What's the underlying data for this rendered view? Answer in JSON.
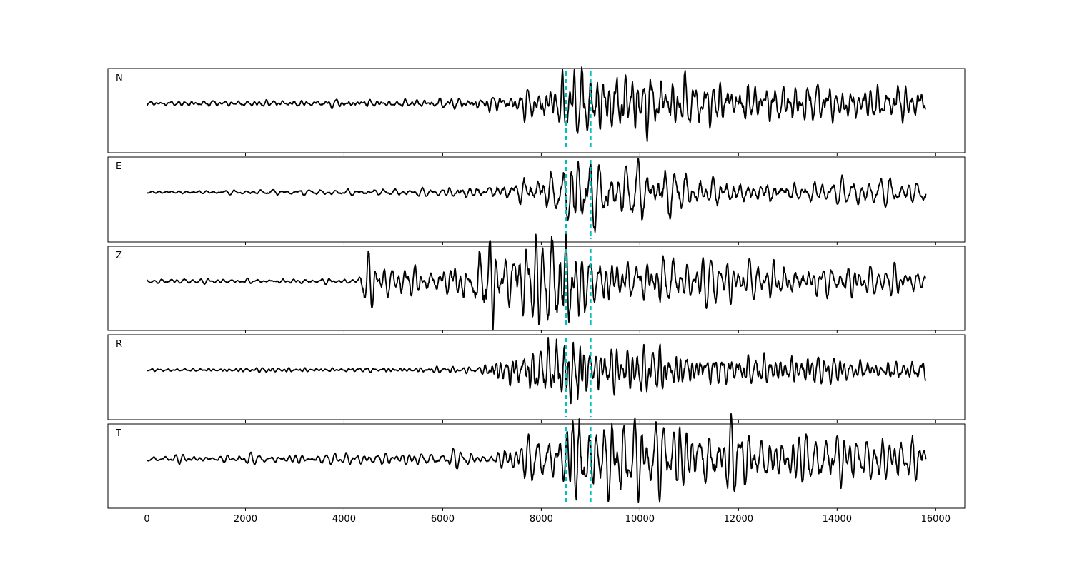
{
  "chart_data": {
    "type": "line",
    "layout": "5 stacked subplots, shared x-axis",
    "xlim": [
      -790,
      16590
    ],
    "x_ticks": [
      0,
      2000,
      4000,
      6000,
      8000,
      10000,
      12000,
      14000,
      16000
    ],
    "x_tick_labels": [
      "0",
      "2000",
      "4000",
      "6000",
      "8000",
      "10000",
      "12000",
      "14000",
      "16000"
    ],
    "y_ticks": "none",
    "grid": false,
    "x_range_of_data": [
      0,
      15800
    ],
    "line_color": "#000000",
    "markers": {
      "color": "#00bfbf",
      "style": "dashed",
      "x": [
        8500,
        9000
      ]
    },
    "panels": [
      {
        "label": "N",
        "envelope": [
          [
            0,
            0.05
          ],
          [
            4500,
            0.07
          ],
          [
            6500,
            0.1
          ],
          [
            7500,
            0.22
          ],
          [
            8400,
            0.5
          ],
          [
            8600,
            1.0
          ],
          [
            9000,
            0.6
          ],
          [
            9600,
            0.7
          ],
          [
            10500,
            0.55
          ],
          [
            12000,
            0.4
          ],
          [
            15800,
            0.35
          ]
        ]
      },
      {
        "label": "E",
        "envelope": [
          [
            0,
            0.04
          ],
          [
            5000,
            0.07
          ],
          [
            7000,
            0.2
          ],
          [
            8400,
            0.5
          ],
          [
            8600,
            1.0
          ],
          [
            9200,
            0.6
          ],
          [
            10500,
            0.5
          ],
          [
            12000,
            0.3
          ],
          [
            15800,
            0.25
          ]
        ]
      },
      {
        "label": "Z",
        "envelope": [
          [
            0,
            0.04
          ],
          [
            4300,
            0.05
          ],
          [
            4400,
            0.4
          ],
          [
            5000,
            0.3
          ],
          [
            6000,
            0.25
          ],
          [
            7000,
            0.8
          ],
          [
            7200,
            0.5
          ],
          [
            8500,
            1.0
          ],
          [
            9000,
            0.5
          ],
          [
            10000,
            0.45
          ],
          [
            12000,
            0.4
          ],
          [
            15800,
            0.2
          ]
        ]
      },
      {
        "label": "R",
        "envelope": [
          [
            0,
            0.03
          ],
          [
            6800,
            0.06
          ],
          [
            7000,
            0.25
          ],
          [
            8500,
            0.8
          ],
          [
            8600,
            1.0
          ],
          [
            9000,
            0.5
          ],
          [
            10500,
            0.45
          ],
          [
            12000,
            0.3
          ],
          [
            15800,
            0.22
          ]
        ]
      },
      {
        "label": "T",
        "envelope": [
          [
            0,
            0.06
          ],
          [
            4800,
            0.1
          ],
          [
            7000,
            0.15
          ],
          [
            8500,
            0.5
          ],
          [
            8600,
            1.0
          ],
          [
            9500,
            0.7
          ],
          [
            10800,
            0.7
          ],
          [
            12000,
            0.5
          ],
          [
            15800,
            0.4
          ]
        ]
      }
    ]
  }
}
